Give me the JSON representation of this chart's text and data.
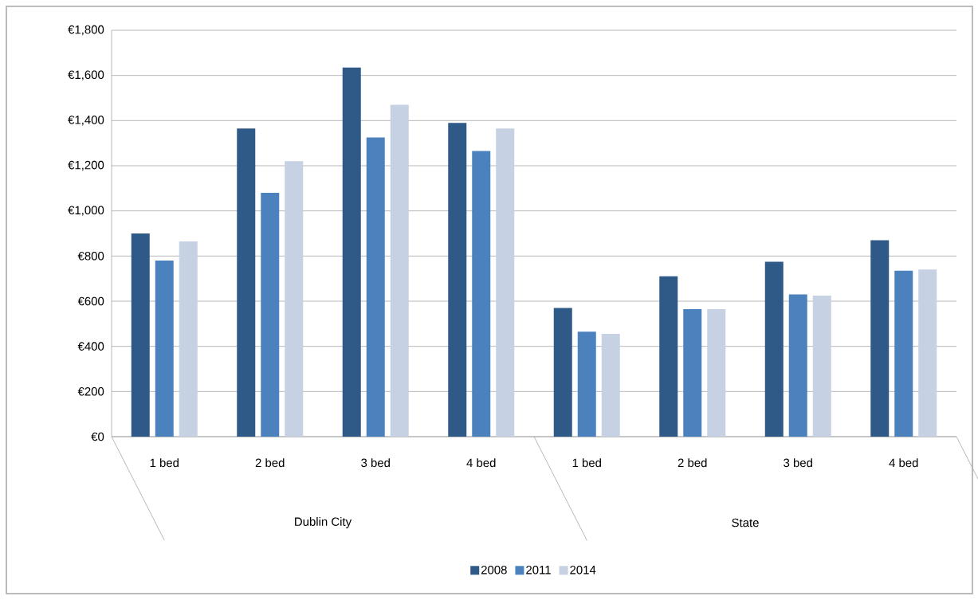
{
  "chart_data": {
    "type": "bar",
    "categories": [
      "1 bed",
      "2 bed",
      "3 bed",
      "4 bed",
      "1 bed",
      "2 bed",
      "3 bed",
      "4 bed"
    ],
    "annotations": [
      "Dublin City",
      "State"
    ],
    "series": [
      {
        "name": "2008",
        "color": "#2f5987",
        "values": [
          900,
          1365,
          1635,
          1390,
          570,
          710,
          775,
          870
        ]
      },
      {
        "name": "2011",
        "color": "#4b82be",
        "values": [
          780,
          1080,
          1325,
          1265,
          465,
          565,
          630,
          735
        ]
      },
      {
        "name": "2014",
        "color": "#c6d1e3",
        "values": [
          865,
          1220,
          1470,
          1365,
          455,
          565,
          625,
          740
        ]
      }
    ],
    "ylim": [
      0,
      1800
    ],
    "yticks": [
      {
        "value": 0,
        "label": "€0"
      },
      {
        "value": 200,
        "label": "€200"
      },
      {
        "value": 400,
        "label": "€400"
      },
      {
        "value": 600,
        "label": "€600"
      },
      {
        "value": 800,
        "label": "€800"
      },
      {
        "value": 1000,
        "label": "€1,000"
      },
      {
        "value": 1200,
        "label": "€1,200"
      },
      {
        "value": 1400,
        "label": "€1,400"
      },
      {
        "value": 1600,
        "label": "€1,600"
      },
      {
        "value": 1800,
        "label": "€1,800"
      }
    ],
    "grid": "y",
    "legend": "bottom"
  }
}
